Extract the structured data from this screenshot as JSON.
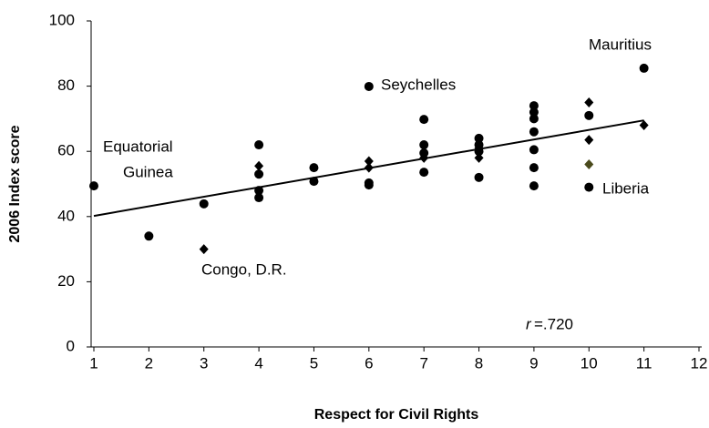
{
  "chart_data": {
    "type": "scatter",
    "xlabel": "Respect for Civil Rights",
    "ylabel": "2006 Index score",
    "xlim": [
      1,
      12
    ],
    "xticks": [
      1,
      2,
      3,
      4,
      5,
      6,
      7,
      8,
      9,
      10,
      11,
      12
    ],
    "ylim": [
      0,
      100
    ],
    "yticks": [
      0,
      20,
      40,
      60,
      80,
      100
    ],
    "grid": false,
    "series": [
      {
        "marker": "circle",
        "color": "#000000",
        "x": [
          1,
          2,
          3,
          4,
          4,
          4,
          4,
          5,
          5,
          6,
          6,
          6,
          7,
          7,
          7,
          7,
          8,
          8,
          8,
          8,
          9,
          9,
          9,
          9,
          9,
          9,
          9,
          10,
          10,
          11
        ],
        "values": [
          49.4,
          34,
          43.9,
          62,
          53,
          48,
          45.8,
          55,
          50.8,
          79.9,
          50.3,
          49.7,
          69.8,
          62,
          59.5,
          53.6,
          64,
          62,
          60,
          52,
          74,
          72,
          70,
          66,
          60.5,
          55,
          49.4,
          71,
          49,
          85.5
        ]
      },
      {
        "marker": "diamond",
        "color": "#000000",
        "x": [
          3,
          4,
          6,
          6,
          7,
          8,
          8,
          10,
          10,
          11
        ],
        "values": [
          30,
          55.5,
          57,
          55,
          58,
          58,
          61,
          75,
          63.5,
          68
        ]
      },
      {
        "marker": "diamond",
        "color": "#4a4a1c",
        "x": [
          10
        ],
        "values": [
          56
        ]
      }
    ],
    "trendline": {
      "color": "#000000",
      "x": [
        1,
        11
      ],
      "values": [
        40.2,
        69.5
      ]
    },
    "annotations": [
      "Mauritius",
      "Seychelles",
      "Equatorial",
      "Guinea",
      "Liberia",
      "Congo, D.R.",
      "r",
      "=.720"
    ]
  }
}
